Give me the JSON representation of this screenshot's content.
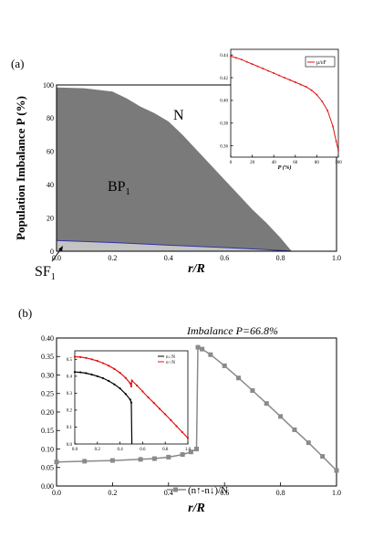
{
  "figure": {
    "panel_a_label": "(a)",
    "panel_b_label": "(b)"
  },
  "colors": {
    "phase_fill": "#7a7a7a",
    "sf_fill": "#c4c4c4",
    "sf_boundary": "#3333aa",
    "inset_a_line": "#e01010",
    "main_b_line": "#8a8a8a",
    "inset_b_black": "#000000",
    "inset_b_red": "#e01010",
    "axis": "#000000"
  },
  "chart_data": [
    {
      "type": "area",
      "panel": "a",
      "xlabel": "r/R",
      "ylabel": "Population Imbalance P (%)",
      "xlim": [
        0,
        1.0
      ],
      "ylim": [
        0,
        100
      ],
      "xticks": [
        "0.0",
        "0.2",
        "0.4",
        "0.6",
        "0.8",
        "1.0"
      ],
      "yticks": [
        "0",
        "20",
        "40",
        "60",
        "80",
        "100"
      ],
      "region_labels": [
        "N",
        "BP1",
        "SF1"
      ],
      "phase_boundary": {
        "x": [
          0.0,
          0.1,
          0.2,
          0.25,
          0.3,
          0.35,
          0.4,
          0.45,
          0.5,
          0.55,
          0.6,
          0.65,
          0.7,
          0.75,
          0.8,
          0.83,
          0.84
        ],
        "y": [
          98.5,
          98,
          96,
          92,
          87,
          83,
          78,
          70,
          61,
          52,
          43,
          34,
          25,
          17,
          8,
          2,
          0
        ]
      },
      "sf_boundary": {
        "x": [
          0.0,
          0.2,
          0.4,
          0.6,
          0.75,
          0.84
        ],
        "y": [
          6.5,
          5.2,
          3.6,
          2.2,
          1.0,
          0.0
        ]
      }
    },
    {
      "type": "line",
      "panel": "a-inset",
      "xlabel": "P (%)",
      "ylabel": "",
      "xlim": [
        0,
        100
      ],
      "ylim": [
        0.35,
        0.445
      ],
      "xticks": [
        "0",
        "20",
        "40",
        "60",
        "80",
        "100"
      ],
      "yticks": [
        "0.36",
        "0.38",
        "0.40",
        "0.42",
        "0.44"
      ],
      "series": [
        {
          "name": "μ/εF",
          "x": [
            0,
            5,
            10,
            15,
            20,
            25,
            30,
            35,
            40,
            45,
            50,
            55,
            60,
            65,
            70,
            75,
            80,
            85,
            90,
            95,
            98,
            100
          ],
          "y": [
            0.439,
            0.4375,
            0.436,
            0.434,
            0.432,
            0.43,
            0.428,
            0.426,
            0.424,
            0.422,
            0.42,
            0.418,
            0.416,
            0.414,
            0.412,
            0.409,
            0.405,
            0.399,
            0.391,
            0.377,
            0.364,
            0.356
          ]
        }
      ]
    },
    {
      "type": "line",
      "panel": "b",
      "title": "Imbalance P=66.8%",
      "xlabel": "r/R",
      "ylabel": "",
      "xlim": [
        0,
        1.0
      ],
      "ylim": [
        0,
        0.4
      ],
      "xticks": [
        "0.0",
        "0.2",
        "0.4",
        "0.6",
        "0.8",
        "1.0"
      ],
      "yticks": [
        "0.00",
        "0.05",
        "0.10",
        "0.15",
        "0.20",
        "0.25",
        "0.30",
        "0.35",
        "0.40"
      ],
      "series": [
        {
          "name": "(n↑-n↓)/N",
          "x": [
            0.0,
            0.1,
            0.2,
            0.3,
            0.35,
            0.4,
            0.45,
            0.48,
            0.5,
            0.505,
            0.52,
            0.55,
            0.6,
            0.65,
            0.7,
            0.75,
            0.8,
            0.85,
            0.9,
            0.95,
            1.0
          ],
          "y": [
            0.065,
            0.067,
            0.069,
            0.072,
            0.074,
            0.078,
            0.085,
            0.092,
            0.1,
            0.375,
            0.37,
            0.355,
            0.325,
            0.292,
            0.258,
            0.223,
            0.188,
            0.152,
            0.117,
            0.08,
            0.042
          ]
        }
      ]
    },
    {
      "type": "line",
      "panel": "b-inset",
      "xlim": [
        0,
        1.0
      ],
      "ylim": [
        0,
        0.55
      ],
      "xticks": [
        "0.0",
        "0.2",
        "0.4",
        "0.6",
        "0.8",
        "1.0"
      ],
      "yticks": [
        "0.0",
        "0.1",
        "0.2",
        "0.3",
        "0.4",
        "0.5"
      ],
      "series": [
        {
          "name": "n↓/N",
          "x": [
            0.0,
            0.05,
            0.1,
            0.15,
            0.2,
            0.25,
            0.3,
            0.35,
            0.4,
            0.45,
            0.49,
            0.5,
            0.505
          ],
          "y": [
            0.425,
            0.423,
            0.418,
            0.41,
            0.4,
            0.388,
            0.372,
            0.352,
            0.328,
            0.295,
            0.262,
            0.245,
            0.0
          ]
        },
        {
          "name": "n↑/N",
          "x": [
            0.0,
            0.05,
            0.1,
            0.15,
            0.2,
            0.25,
            0.3,
            0.35,
            0.4,
            0.45,
            0.49,
            0.5,
            0.505,
            0.55,
            0.6,
            0.65,
            0.7,
            0.75,
            0.8,
            0.85,
            0.9,
            0.95,
            1.0
          ],
          "y": [
            0.515,
            0.513,
            0.508,
            0.5,
            0.49,
            0.477,
            0.462,
            0.443,
            0.42,
            0.39,
            0.358,
            0.34,
            0.375,
            0.345,
            0.31,
            0.275,
            0.242,
            0.208,
            0.175,
            0.14,
            0.105,
            0.07,
            0.035
          ]
        }
      ]
    }
  ]
}
